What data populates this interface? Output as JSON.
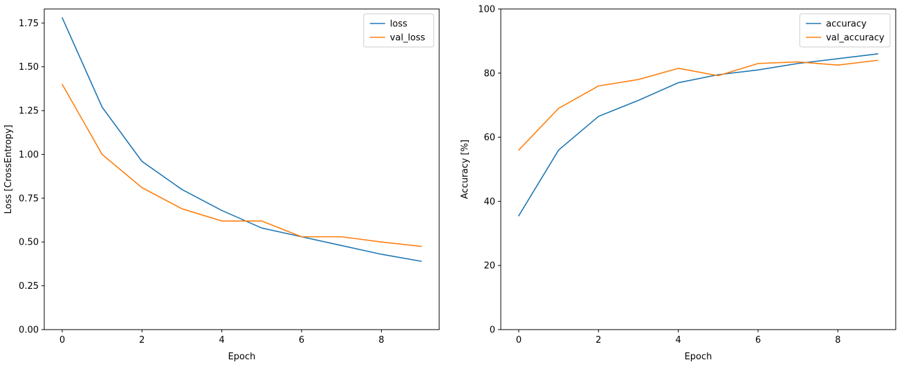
{
  "figure": {
    "background": "#ffffff",
    "axis_color": "#000000",
    "legend_border_color": "#cccccc",
    "legend_background": "#ffffff"
  },
  "chart_data": [
    {
      "type": "line",
      "name": "loss-plot",
      "title": "",
      "xlabel": "Epoch",
      "ylabel": "Loss [CrossEntropy]",
      "x": [
        0,
        1,
        2,
        3,
        4,
        5,
        6,
        7,
        8,
        9
      ],
      "series": [
        {
          "name": "loss",
          "color": "#1f77b4",
          "values": [
            1.78,
            1.27,
            0.96,
            0.8,
            0.68,
            0.58,
            0.53,
            0.48,
            0.43,
            0.39
          ]
        },
        {
          "name": "val_loss",
          "color": "#ff7f0e",
          "values": [
            1.4,
            1.0,
            0.81,
            0.69,
            0.62,
            0.62,
            0.53,
            0.53,
            0.5,
            0.475
          ]
        }
      ],
      "xlim": [
        -0.45,
        9.45
      ],
      "ylim": [
        0,
        1.83
      ],
      "xticks": [
        0,
        2,
        4,
        6,
        8
      ],
      "xtick_labels": [
        "0",
        "2",
        "4",
        "6",
        "8"
      ],
      "yticks": [
        0.0,
        0.25,
        0.5,
        0.75,
        1.0,
        1.25,
        1.5,
        1.75
      ],
      "ytick_labels": [
        "0.00",
        "0.25",
        "0.50",
        "0.75",
        "1.00",
        "1.25",
        "1.50",
        "1.75"
      ],
      "grid": false,
      "legend": [
        "loss",
        "val_loss"
      ],
      "legend_position": "upper right"
    },
    {
      "type": "line",
      "name": "accuracy-plot",
      "title": "",
      "xlabel": "Epoch",
      "ylabel": "Accuracy [%]",
      "x": [
        0,
        1,
        2,
        3,
        4,
        5,
        6,
        7,
        8,
        9
      ],
      "series": [
        {
          "name": "accuracy",
          "color": "#1f77b4",
          "values": [
            35.5,
            56,
            66.5,
            71.5,
            77,
            79.5,
            81,
            83,
            84.5,
            86
          ]
        },
        {
          "name": "val_accuracy",
          "color": "#ff7f0e",
          "values": [
            56,
            69,
            76,
            78,
            81.5,
            79.2,
            83,
            83.5,
            82.5,
            84
          ]
        }
      ],
      "xlim": [
        -0.45,
        9.45
      ],
      "ylim": [
        0,
        100
      ],
      "xticks": [
        0,
        2,
        4,
        6,
        8
      ],
      "xtick_labels": [
        "0",
        "2",
        "4",
        "6",
        "8"
      ],
      "yticks": [
        0,
        20,
        40,
        60,
        80,
        100
      ],
      "ytick_labels": [
        "0",
        "20",
        "40",
        "60",
        "80",
        "100"
      ],
      "grid": false,
      "legend": [
        "accuracy",
        "val_accuracy"
      ],
      "legend_position": "upper right"
    }
  ]
}
